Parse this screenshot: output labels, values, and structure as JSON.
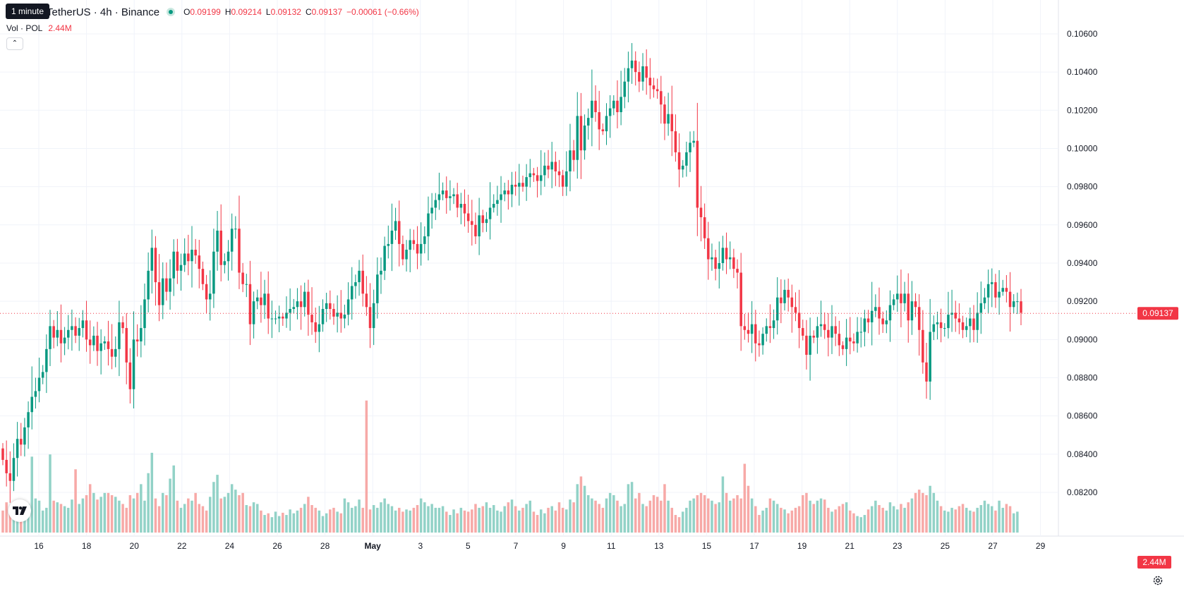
{
  "header": {
    "symbol_title": "TetherUS · 4h · Binance",
    "ohlc": {
      "o_label": "O",
      "o": "0.09199",
      "h_label": "H",
      "h": "0.09214",
      "l_label": "L",
      "l": "0.09132",
      "c_label": "C",
      "c": "0.09137",
      "change": "−0.00061 (−0.66%)"
    },
    "tooltip": "1 minute"
  },
  "volume_legend": {
    "label": "Vol · POL",
    "value": "2.44M"
  },
  "price_badge": "0.09137",
  "volume_badge": "2.44M",
  "colors": {
    "up": "#089981",
    "down": "#f23645",
    "up_vol": "#92d2c7",
    "down_vol": "#f7a9a7"
  },
  "icons": {
    "logo": "tradingview-logo-icon",
    "gear": "gear-icon",
    "collapse": "chevron-up-icon"
  },
  "chart_data": {
    "type": "candlestick",
    "y_ticks": [
      "0.08200",
      "0.08400",
      "0.08600",
      "0.08800",
      "0.09000",
      "0.09200",
      "0.09400",
      "0.09600",
      "0.09800",
      "0.10000",
      "0.10200",
      "0.10400",
      "0.10600"
    ],
    "ylim": [
      0.0805,
      0.107
    ],
    "x_ticks": [
      "16",
      "18",
      "20",
      "22",
      "24",
      "26",
      "28",
      "May",
      "3",
      "5",
      "7",
      "9",
      "11",
      "13",
      "15",
      "17",
      "19",
      "21",
      "23",
      "25",
      "27",
      "29"
    ],
    "last_price": 0.09137,
    "closes": [
      0.0837,
      0.083,
      0.0826,
      0.0838,
      0.0848,
      0.0845,
      0.0854,
      0.0862,
      0.087,
      0.0873,
      0.088,
      0.0883,
      0.0895,
      0.0907,
      0.0901,
      0.0905,
      0.0898,
      0.0901,
      0.0905,
      0.0907,
      0.0902,
      0.0906,
      0.091,
      0.09,
      0.0897,
      0.0902,
      0.0894,
      0.0898,
      0.0899,
      0.0895,
      0.0891,
      0.0895,
      0.0909,
      0.0906,
      0.0888,
      0.0874,
      0.09,
      0.0899,
      0.0906,
      0.0921,
      0.0936,
      0.0948,
      0.093,
      0.0918,
      0.0932,
      0.0925,
      0.0932,
      0.0946,
      0.0936,
      0.0939,
      0.0945,
      0.0941,
      0.0947,
      0.0944,
      0.0937,
      0.0929,
      0.0921,
      0.0924,
      0.0946,
      0.0957,
      0.0939,
      0.0941,
      0.0946,
      0.0958,
      0.0958,
      0.0935,
      0.0929,
      0.0929,
      0.0908,
      0.092,
      0.0922,
      0.0918,
      0.0924,
      0.0911,
      0.0911,
      0.0911,
      0.0912,
      0.0911,
      0.0914,
      0.0916,
      0.0917,
      0.092,
      0.0917,
      0.0925,
      0.0913,
      0.0909,
      0.0904,
      0.0908,
      0.0916,
      0.0919,
      0.0916,
      0.0912,
      0.0914,
      0.0911,
      0.0913,
      0.0921,
      0.0928,
      0.093,
      0.0936,
      0.0924,
      0.0917,
      0.0906,
      0.0919,
      0.0934,
      0.0936,
      0.0949,
      0.095,
      0.0957,
      0.0962,
      0.095,
      0.0942,
      0.0947,
      0.0952,
      0.095,
      0.0945,
      0.095,
      0.0954,
      0.0966,
      0.0969,
      0.0973,
      0.0976,
      0.0978,
      0.0974,
      0.0975,
      0.0976,
      0.0969,
      0.0971,
      0.0966,
      0.0962,
      0.096,
      0.0954,
      0.0965,
      0.0961,
      0.0963,
      0.0969,
      0.0971,
      0.0973,
      0.0976,
      0.0978,
      0.0976,
      0.0981,
      0.098,
      0.0982,
      0.098,
      0.0985,
      0.0987,
      0.0986,
      0.0983,
      0.0986,
      0.0991,
      0.0989,
      0.0993,
      0.0988,
      0.0986,
      0.098,
      0.0988,
      0.0999,
      0.0994,
      0.1017,
      0.0999,
      0.1012,
      0.1016,
      0.1025,
      0.1019,
      0.101,
      0.1009,
      0.1017,
      0.1021,
      0.1025,
      0.1019,
      0.1027,
      0.1035,
      0.1042,
      0.1046,
      0.104,
      0.1035,
      0.1043,
      0.1037,
      0.1033,
      0.1031,
      0.103,
      0.1023,
      0.1013,
      0.1018,
      0.1009,
      0.0998,
      0.0989,
      0.0991,
      0.0998,
      0.1003,
      0.1004,
      0.0969,
      0.0964,
      0.0953,
      0.0942,
      0.0943,
      0.0937,
      0.094,
      0.0948,
      0.0942,
      0.0943,
      0.0937,
      0.0935,
      0.0907,
      0.0905,
      0.0903,
      0.0908,
      0.0898,
      0.0897,
      0.0903,
      0.0907,
      0.0906,
      0.091,
      0.0922,
      0.0919,
      0.0926,
      0.0922,
      0.0917,
      0.0914,
      0.0906,
      0.0902,
      0.0892,
      0.0902,
      0.0901,
      0.0907,
      0.0908,
      0.0905,
      0.0901,
      0.0907,
      0.0903,
      0.0897,
      0.0895,
      0.0901,
      0.0899,
      0.0898,
      0.0904,
      0.0904,
      0.0911,
      0.0909,
      0.0915,
      0.0917,
      0.0911,
      0.0908,
      0.091,
      0.0918,
      0.0921,
      0.0924,
      0.0919,
      0.0924,
      0.091,
      0.092,
      0.0917,
      0.0905,
      0.0888,
      0.0878,
      0.0904,
      0.0908,
      0.0909,
      0.0906,
      0.0906,
      0.0913,
      0.0914,
      0.0911,
      0.0909,
      0.0905,
      0.0907,
      0.0911,
      0.0905,
      0.0914,
      0.0919,
      0.0922,
      0.0929,
      0.093,
      0.0922,
      0.0925,
      0.0927,
      0.0925,
      0.0917,
      0.092,
      0.092,
      0.0914
    ],
    "volumes": [
      0.4,
      0.55,
      0.45,
      0.5,
      0.58,
      0.48,
      0.42,
      0.52,
      1.38,
      0.62,
      0.58,
      0.4,
      0.45,
      1.42,
      0.58,
      0.55,
      0.52,
      0.48,
      0.45,
      0.6,
      1.15,
      0.52,
      0.62,
      0.68,
      0.88,
      0.72,
      0.6,
      0.65,
      0.72,
      0.72,
      0.68,
      0.65,
      0.58,
      0.52,
      0.45,
      0.68,
      0.62,
      0.72,
      0.88,
      0.58,
      1.08,
      1.45,
      0.62,
      0.48,
      0.72,
      0.68,
      0.98,
      1.22,
      0.58,
      0.45,
      0.52,
      0.62,
      0.58,
      0.72,
      0.52,
      0.48,
      0.4,
      0.65,
      0.92,
      1.05,
      0.62,
      0.65,
      0.72,
      0.88,
      0.78,
      0.68,
      0.72,
      0.5,
      0.48,
      0.55,
      0.52,
      0.4,
      0.32,
      0.35,
      0.28,
      0.38,
      0.3,
      0.36,
      0.32,
      0.42,
      0.35,
      0.4,
      0.45,
      0.52,
      0.65,
      0.5,
      0.45,
      0.4,
      0.3,
      0.35,
      0.42,
      0.45,
      0.38,
      0.35,
      0.62,
      0.55,
      0.45,
      0.48,
      0.6,
      0.45,
      2.4,
      0.42,
      0.5,
      0.45,
      0.55,
      0.62,
      0.52,
      0.48,
      0.4,
      0.45,
      0.38,
      0.42,
      0.4,
      0.45,
      0.5,
      0.62,
      0.55,
      0.48,
      0.52,
      0.45,
      0.45,
      0.48,
      0.38,
      0.32,
      0.42,
      0.35,
      0.45,
      0.4,
      0.38,
      0.42,
      0.52,
      0.45,
      0.48,
      0.55,
      0.45,
      0.5,
      0.4,
      0.38,
      0.48,
      0.55,
      0.6,
      0.48,
      0.4,
      0.45,
      0.52,
      0.58,
      0.38,
      0.32,
      0.42,
      0.35,
      0.45,
      0.48,
      0.4,
      0.55,
      0.45,
      0.42,
      0.6,
      0.55,
      0.88,
      1.02,
      0.85,
      0.68,
      0.62,
      0.58,
      0.52,
      0.45,
      0.62,
      0.72,
      0.68,
      0.58,
      0.48,
      0.52,
      0.88,
      0.92,
      0.62,
      0.72,
      0.52,
      0.48,
      0.58,
      0.68,
      0.65,
      0.58,
      0.88,
      0.58,
      0.45,
      0.32,
      0.28,
      0.38,
      0.45,
      0.58,
      0.62,
      0.68,
      0.72,
      0.68,
      0.62,
      0.58,
      0.52,
      0.55,
      1.02,
      0.72,
      0.58,
      0.62,
      0.68,
      0.62,
      1.25,
      0.85,
      0.62,
      0.48,
      0.32,
      0.4,
      0.45,
      0.62,
      0.58,
      0.52,
      0.45,
      0.42,
      0.35,
      0.4,
      0.45,
      0.48,
      0.68,
      0.72,
      0.58,
      0.52,
      0.58,
      0.62,
      0.6,
      0.45,
      0.38,
      0.42,
      0.48,
      0.52,
      0.55,
      0.4,
      0.35,
      0.3,
      0.28,
      0.32,
      0.42,
      0.48,
      0.58,
      0.5,
      0.45,
      0.4,
      0.55,
      0.48,
      0.42,
      0.52,
      0.45,
      0.55,
      0.62,
      0.72,
      0.78,
      0.72,
      0.68,
      0.85,
      0.72,
      0.58,
      0.48,
      0.4,
      0.38,
      0.45,
      0.42,
      0.48,
      0.52,
      0.45,
      0.4,
      0.38,
      0.45,
      0.5,
      0.58,
      0.52,
      0.48,
      0.4,
      0.58,
      0.45,
      0.52,
      0.48,
      0.35,
      0.38
    ]
  }
}
